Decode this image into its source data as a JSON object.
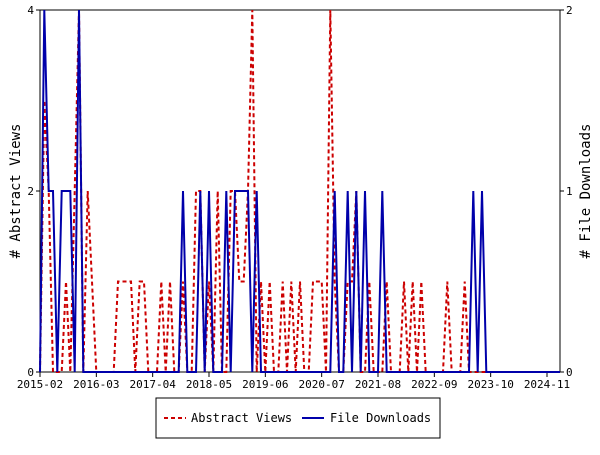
{
  "chart_data": {
    "type": "line",
    "title": "",
    "xlabel": "",
    "ylabel_left": "# Abstract Views",
    "ylabel_right": "# File Downloads",
    "x_ticks": [
      "2015-02",
      "2016-03",
      "2017-04",
      "2018-05",
      "2019-06",
      "2020-07",
      "2021-08",
      "2022-09",
      "2023-10",
      "2024-11"
    ],
    "x_range": [
      "2015-02",
      "2025-02"
    ],
    "y_left_ticks": [
      "0",
      "2",
      "4"
    ],
    "y_left_range": [
      0,
      4
    ],
    "y_right_ticks": [
      "0",
      "1",
      "2"
    ],
    "y_right_range": [
      0,
      2
    ],
    "legend_position": "bottom-center",
    "series": [
      {
        "name": "Abstract Views",
        "axis": "left",
        "color": "#cc0000",
        "style": "dashed",
        "x": [
          "2015-02",
          "2015-03",
          "2015-04",
          "2015-05",
          "2015-06",
          "2015-07",
          "2015-08",
          "2015-09",
          "2015-10",
          "2015-11",
          "2015-12",
          "2016-01",
          "2016-02",
          "2016-03",
          "2016-04",
          "2016-05",
          "2016-06",
          "2016-07",
          "2016-08",
          "2016-09",
          "2016-10",
          "2016-11",
          "2016-12",
          "2017-01",
          "2017-02",
          "2017-03",
          "2017-04",
          "2017-05",
          "2017-06",
          "2017-07",
          "2017-08",
          "2017-09",
          "2017-10",
          "2017-11",
          "2017-12",
          "2018-01",
          "2018-02",
          "2018-03",
          "2018-04",
          "2018-05",
          "2018-06",
          "2018-07",
          "2018-08",
          "2018-09",
          "2018-10",
          "2018-11",
          "2018-12",
          "2019-01",
          "2019-02",
          "2019-03",
          "2019-04",
          "2019-05",
          "2019-06",
          "2019-07",
          "2019-08",
          "2019-09",
          "2019-10",
          "2019-11",
          "2019-12",
          "2020-01",
          "2020-02",
          "2020-03",
          "2020-04",
          "2020-05",
          "2020-06",
          "2020-07",
          "2020-08",
          "2020-09",
          "2020-10",
          "2020-11",
          "2020-12",
          "2021-01",
          "2021-02",
          "2021-03",
          "2021-04",
          "2021-05",
          "2021-06",
          "2021-07",
          "2021-08",
          "2021-09",
          "2021-10",
          "2021-11",
          "2021-12",
          "2022-01",
          "2022-02",
          "2022-03",
          "2022-04",
          "2022-05",
          "2022-06",
          "2022-07",
          "2022-08",
          "2022-09",
          "2022-10",
          "2022-11",
          "2022-12",
          "2023-01",
          "2023-02",
          "2023-03",
          "2023-04",
          "2023-05",
          "2023-06",
          "2023-07",
          "2023-08",
          "2023-09",
          "2023-10",
          "2023-11",
          "2023-12",
          "2024-01",
          "2024-02",
          "2024-03",
          "2024-04",
          "2024-05",
          "2024-06",
          "2024-07",
          "2024-08",
          "2024-09",
          "2024-10",
          "2024-11",
          "2024-12",
          "2025-01",
          "2025-02"
        ],
        "values": [
          0,
          3,
          2,
          0,
          0,
          0,
          1,
          0,
          2,
          4,
          0,
          2,
          1,
          0,
          0,
          0,
          0,
          0,
          1,
          1,
          1,
          1,
          0,
          1,
          1,
          0,
          0,
          0,
          1,
          0,
          1,
          0,
          0,
          1,
          0,
          0,
          2,
          2,
          0,
          1,
          0,
          2,
          0,
          0,
          2,
          2,
          1,
          1,
          2,
          4,
          0,
          1,
          0,
          1,
          0,
          0,
          1,
          0,
          1,
          0,
          1,
          0,
          0,
          1,
          1,
          1,
          0,
          4,
          1,
          0,
          0,
          1,
          1,
          2,
          0,
          0,
          1,
          0,
          0,
          0,
          1,
          0,
          0,
          0,
          1,
          0,
          1,
          0,
          1,
          0,
          0,
          0,
          0,
          0,
          1,
          0,
          0,
          0,
          1,
          0,
          0,
          0,
          0,
          0,
          0,
          0,
          0,
          0,
          0,
          0,
          0,
          0,
          0,
          0,
          0,
          0,
          0,
          0,
          0,
          0,
          0
        ]
      },
      {
        "name": "File Downloads",
        "axis": "right",
        "color": "#0000aa",
        "style": "solid",
        "x": [
          "2015-02",
          "2015-03",
          "2015-04",
          "2015-05",
          "2015-06",
          "2015-07",
          "2015-08",
          "2015-09",
          "2015-10",
          "2015-11",
          "2015-12",
          "2016-01",
          "2016-02",
          "2016-03",
          "2016-04",
          "2016-05",
          "2016-06",
          "2016-07",
          "2016-08",
          "2016-09",
          "2016-10",
          "2016-11",
          "2016-12",
          "2017-01",
          "2017-02",
          "2017-03",
          "2017-04",
          "2017-05",
          "2017-06",
          "2017-07",
          "2017-08",
          "2017-09",
          "2017-10",
          "2017-11",
          "2017-12",
          "2018-01",
          "2018-02",
          "2018-03",
          "2018-04",
          "2018-05",
          "2018-06",
          "2018-07",
          "2018-08",
          "2018-09",
          "2018-10",
          "2018-11",
          "2018-12",
          "2019-01",
          "2019-02",
          "2019-03",
          "2019-04",
          "2019-05",
          "2019-06",
          "2019-07",
          "2019-08",
          "2019-09",
          "2019-10",
          "2019-11",
          "2019-12",
          "2020-01",
          "2020-02",
          "2020-03",
          "2020-04",
          "2020-05",
          "2020-06",
          "2020-07",
          "2020-08",
          "2020-09",
          "2020-10",
          "2020-11",
          "2020-12",
          "2021-01",
          "2021-02",
          "2021-03",
          "2021-04",
          "2021-05",
          "2021-06",
          "2021-07",
          "2021-08",
          "2021-09",
          "2021-10",
          "2021-11",
          "2021-12",
          "2022-01",
          "2022-02",
          "2022-03",
          "2022-04",
          "2022-05",
          "2022-06",
          "2022-07",
          "2022-08",
          "2022-09",
          "2022-10",
          "2022-11",
          "2022-12",
          "2023-01",
          "2023-02",
          "2023-03",
          "2023-04",
          "2023-05",
          "2023-06",
          "2023-07",
          "2023-08",
          "2023-09",
          "2023-10",
          "2023-11",
          "2023-12",
          "2024-01",
          "2024-02",
          "2024-03",
          "2024-04",
          "2024-05",
          "2024-06",
          "2024-07",
          "2024-08",
          "2024-09",
          "2024-10",
          "2024-11",
          "2024-12",
          "2025-01",
          "2025-02"
        ],
        "values": [
          0,
          2,
          1,
          1,
          0,
          1,
          1,
          1,
          0,
          2,
          0,
          0,
          0,
          0,
          0,
          0,
          0,
          0,
          0,
          0,
          0,
          0,
          0,
          0,
          0,
          0,
          0,
          0,
          0,
          0,
          0,
          0,
          0,
          1,
          0,
          0,
          0,
          1,
          0,
          1,
          0,
          0,
          0,
          1,
          0,
          1,
          1,
          1,
          1,
          0,
          1,
          0,
          0,
          0,
          0,
          0,
          0,
          0,
          0,
          0,
          0,
          0,
          0,
          0,
          0,
          0,
          0,
          0,
          1,
          0,
          0,
          1,
          0,
          1,
          0,
          1,
          0,
          0,
          0,
          1,
          0,
          0,
          0,
          0,
          0,
          0,
          0,
          0,
          0,
          0,
          0,
          0,
          0,
          0,
          0,
          0,
          0,
          0,
          0,
          0,
          1,
          0,
          1,
          0,
          0,
          0,
          0,
          0,
          0,
          0,
          0,
          0,
          0,
          0,
          0,
          0,
          0,
          0,
          0,
          0,
          0
        ]
      }
    ]
  }
}
